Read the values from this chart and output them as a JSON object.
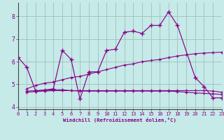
{
  "background_color": "#c5eae8",
  "grid_color": "#a0bebe",
  "line_color": "#880088",
  "spine_color": "#444444",
  "x_label": "Windchill (Refroidissement éolien,°C)",
  "xlim": [
    0,
    23
  ],
  "ylim": [
    3.9,
    8.6
  ],
  "yticks": [
    4,
    5,
    6,
    7,
    8
  ],
  "xticks": [
    0,
    1,
    2,
    3,
    4,
    5,
    6,
    7,
    8,
    9,
    10,
    11,
    12,
    13,
    14,
    15,
    16,
    17,
    18,
    19,
    20,
    21,
    22,
    23
  ],
  "series_main_x": [
    0,
    1,
    2,
    3,
    4,
    5,
    6,
    7,
    8,
    9,
    10,
    11,
    12,
    13,
    14,
    15,
    16,
    17,
    18,
    20,
    21,
    22,
    23
  ],
  "series_main_y": [
    6.2,
    5.75,
    4.7,
    4.75,
    4.8,
    6.5,
    6.1,
    4.35,
    5.55,
    5.55,
    6.5,
    6.55,
    7.3,
    7.35,
    7.25,
    7.6,
    7.6,
    8.2,
    7.6,
    5.3,
    4.9,
    4.4,
    4.4
  ],
  "series_diag_x": [
    1,
    2,
    3,
    4,
    5,
    6,
    7,
    8,
    9,
    10,
    11,
    12,
    13,
    14,
    15,
    16,
    17,
    18,
    19,
    20,
    21,
    22,
    23
  ],
  "series_diag_y": [
    4.8,
    4.95,
    5.05,
    5.1,
    5.2,
    5.3,
    5.35,
    5.45,
    5.55,
    5.65,
    5.75,
    5.85,
    5.9,
    6.0,
    6.05,
    6.1,
    6.18,
    6.25,
    6.3,
    6.35,
    6.38,
    6.4,
    6.42
  ],
  "series_flat1_x": [
    1,
    2,
    3,
    4,
    5,
    6,
    7,
    8,
    9,
    10,
    11,
    12,
    13,
    14,
    15,
    16,
    17,
    18,
    19,
    20,
    21,
    22,
    23
  ],
  "series_flat1_y": [
    4.65,
    4.68,
    4.7,
    4.72,
    4.72,
    4.72,
    4.72,
    4.72,
    4.72,
    4.72,
    4.72,
    4.72,
    4.72,
    4.72,
    4.72,
    4.72,
    4.72,
    4.72,
    4.72,
    4.72,
    4.72,
    4.7,
    4.65
  ],
  "series_flat2_x": [
    1,
    2,
    3,
    4,
    5,
    6,
    7,
    8,
    9,
    10,
    11,
    12,
    13,
    14,
    15,
    16,
    17,
    18,
    19,
    20,
    21,
    22,
    23
  ],
  "series_flat2_y": [
    4.7,
    4.72,
    4.74,
    4.76,
    4.76,
    4.72,
    4.7,
    4.7,
    4.7,
    4.7,
    4.7,
    4.7,
    4.7,
    4.7,
    4.7,
    4.7,
    4.7,
    4.68,
    4.65,
    4.62,
    4.6,
    4.58,
    4.55
  ]
}
